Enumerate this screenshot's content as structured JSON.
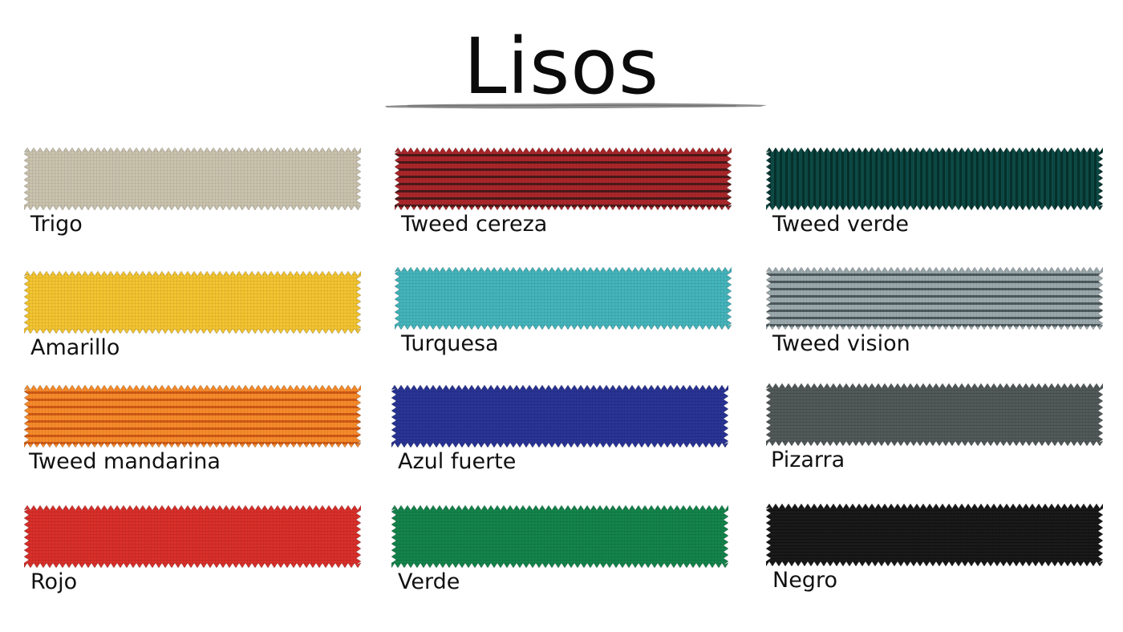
{
  "title": "Lisos",
  "swatches": [
    {
      "label": "Trigo",
      "color": "#c9c2ad",
      "stripe": "#b3ab95",
      "weave": "plain"
    },
    {
      "label": "Tweed cereza",
      "color": "#a8262a",
      "stripe": "#3a1716",
      "weave": "tweed"
    },
    {
      "label": "Tweed verde",
      "color": "#0d4a45",
      "stripe": "#052a27",
      "weave": "tweed-v"
    },
    {
      "label": "Amarillo",
      "color": "#f2c432",
      "stripe": "#d9a81a",
      "weave": "plain"
    },
    {
      "label": "Turquesa",
      "color": "#45b4bb",
      "stripe": "#2f9aa2",
      "weave": "plain"
    },
    {
      "label": "Tweed vision",
      "color": "#9aa7ab",
      "stripe": "#3e4a4e",
      "weave": "tweed"
    },
    {
      "label": "Tweed mandarina",
      "color": "#f58a2a",
      "stripe": "#c64f12",
      "weave": "tweed"
    },
    {
      "label": "Azul fuerte",
      "color": "#2a3596",
      "stripe": "#1b2373",
      "weave": "plain"
    },
    {
      "label": "Pizarra",
      "color": "#525a59",
      "stripe": "#3a4140",
      "weave": "plain"
    },
    {
      "label": "Rojo",
      "color": "#d9302b",
      "stripe": "#b51f1c",
      "weave": "plain"
    },
    {
      "label": "Verde",
      "color": "#14844c",
      "stripe": "#0a6b3a",
      "weave": "plain"
    },
    {
      "label": "Negro",
      "color": "#1a1a1a",
      "stripe": "#050505",
      "weave": "plain"
    }
  ]
}
